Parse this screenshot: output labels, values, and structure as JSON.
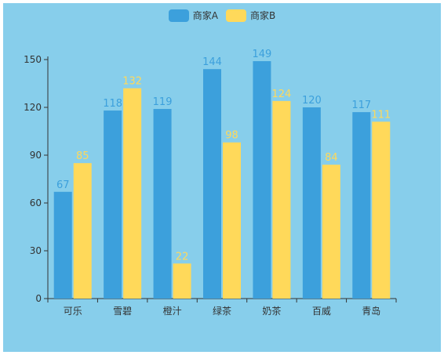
{
  "colors": {
    "panel_bg": "#87ceeb",
    "series_a": "#3ca0dc",
    "series_b": "#ffd95a",
    "axis": "#333333"
  },
  "chart_data": {
    "type": "bar",
    "categories": [
      "可乐",
      "雪碧",
      "橙汁",
      "绿茶",
      "奶茶",
      "百威",
      "青岛"
    ],
    "series": [
      {
        "name": "商家A",
        "values": [
          67,
          118,
          119,
          144,
          149,
          120,
          117
        ]
      },
      {
        "name": "商家B",
        "values": [
          85,
          132,
          22,
          98,
          124,
          84,
          111
        ]
      }
    ],
    "ylim": [
      0,
      150
    ],
    "yticks": [
      0,
      30,
      60,
      90,
      120,
      150
    ],
    "legend_position": "top-center",
    "grid": false,
    "data_labels": true
  }
}
